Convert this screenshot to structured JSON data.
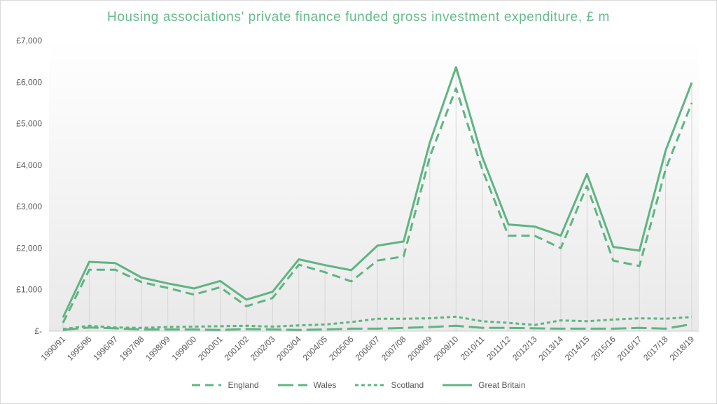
{
  "chart_data": {
    "type": "line",
    "title": "Housing associations' private finance funded gross investment expenditure, £ m",
    "categories": [
      "1990/91",
      "1995/96",
      "1996/97",
      "1997/98",
      "1998/99",
      "1999/00",
      "2000/01",
      "2001/02",
      "2002/03",
      "2003/04",
      "2004/05",
      "2005/06",
      "2006/07",
      "2007/08",
      "2008/09",
      "2009/10",
      "2010/11",
      "2011/12",
      "2012/13",
      "2013/14",
      "2014/15",
      "2015/16",
      "2016/17",
      "2017/18",
      "2018/19"
    ],
    "y_tick_labels": [
      "£-",
      "£1,000",
      "£2,000",
      "£3,000",
      "£4,000",
      "£5,000",
      "£6,000",
      "£7,000"
    ],
    "ylim": [
      0,
      7000
    ],
    "grid": false,
    "drop_lines": true,
    "legend_position": "bottom",
    "series": [
      {
        "name": "England",
        "dash": "long-dash",
        "color": "#5fb483",
        "values": [
          200,
          1480,
          1480,
          1180,
          1040,
          880,
          1060,
          600,
          800,
          1600,
          1420,
          1200,
          1700,
          1800,
          4200,
          5850,
          3900,
          2300,
          2300,
          2000,
          3500,
          1700,
          1570,
          3900,
          5500
        ]
      },
      {
        "name": "Wales",
        "dash": "long-dash-dot",
        "color": "#5fb483",
        "values": [
          30,
          90,
          70,
          40,
          40,
          40,
          30,
          50,
          40,
          30,
          40,
          60,
          60,
          80,
          100,
          130,
          80,
          80,
          70,
          60,
          60,
          60,
          80,
          60,
          170
        ]
      },
      {
        "name": "Scotland",
        "dash": "short-dash",
        "color": "#5fb483",
        "values": [
          50,
          130,
          90,
          80,
          100,
          110,
          120,
          130,
          110,
          140,
          160,
          220,
          300,
          300,
          310,
          350,
          240,
          200,
          150,
          260,
          240,
          280,
          310,
          300,
          340
        ]
      },
      {
        "name": "Great Britain",
        "dash": "solid",
        "color": "#5fb483",
        "values": [
          330,
          1670,
          1640,
          1290,
          1150,
          1030,
          1210,
          760,
          950,
          1730,
          1590,
          1470,
          2060,
          2160,
          4540,
          6360,
          4200,
          2570,
          2520,
          2300,
          3790,
          2030,
          1940,
          4350,
          5990
        ]
      }
    ]
  }
}
